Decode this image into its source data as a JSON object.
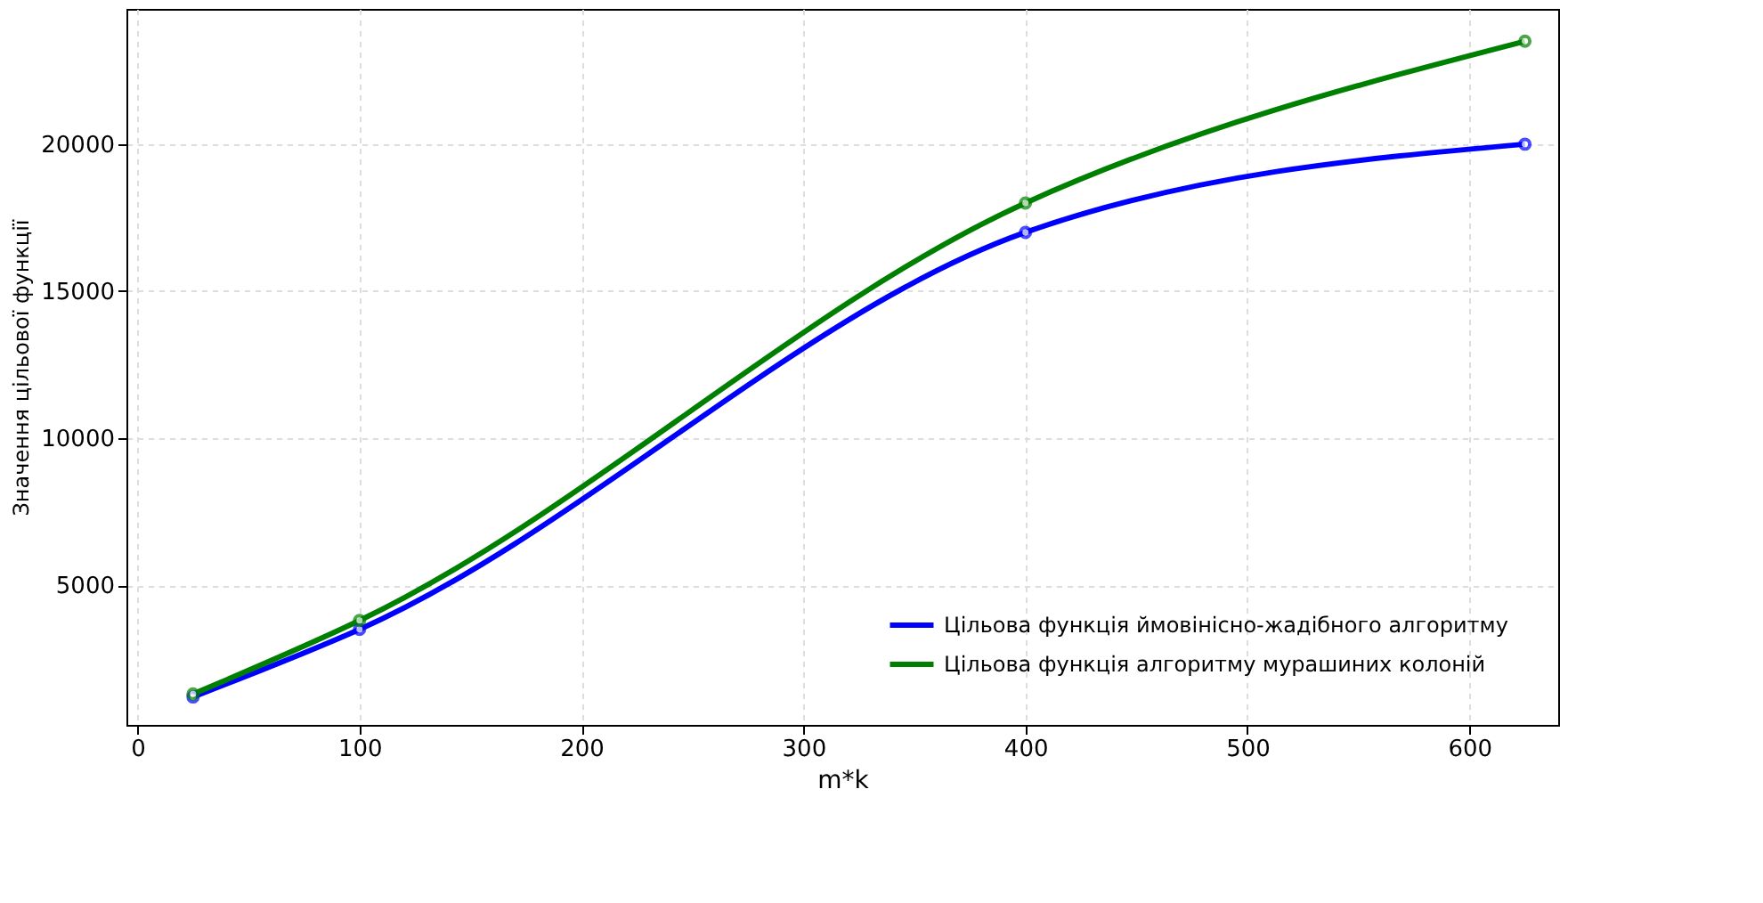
{
  "chart_data": {
    "type": "line",
    "xlabel": "m*k",
    "ylabel": "Значення цільової функції",
    "x": [
      25,
      100,
      400,
      625
    ],
    "series": [
      {
        "name": "Цільова функція ймовінісно-жадібного алгоритму",
        "color": "#0000ff",
        "values": [
          1200,
          3500,
          17000,
          20000
        ]
      },
      {
        "name": "Цільова функція алгоритму мурашиних колоній",
        "color": "#008000",
        "values": [
          1300,
          3800,
          18000,
          23500
        ]
      }
    ],
    "xlim": [
      -5,
      640
    ],
    "xticks": [
      0,
      100,
      200,
      300,
      400,
      500,
      600
    ],
    "ylim": [
      250,
      24600
    ],
    "yticks": [
      5000,
      10000,
      15000,
      20000
    ],
    "grid": true,
    "legend": "bottom right",
    "marker": "circle",
    "line_style": "solid"
  }
}
